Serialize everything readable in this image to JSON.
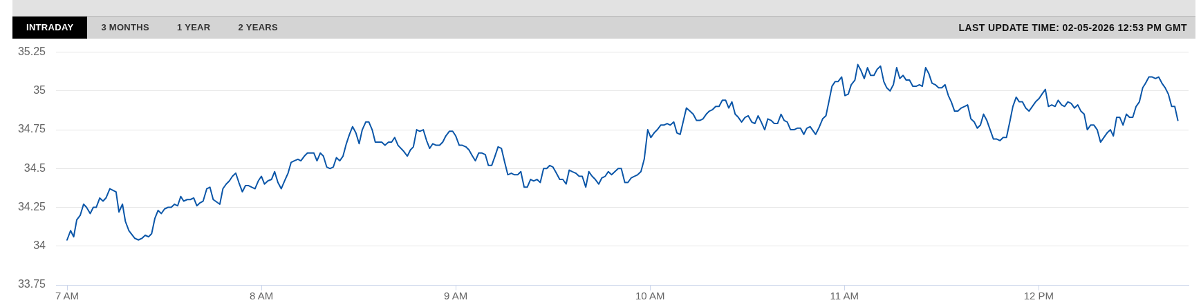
{
  "chart_data": {
    "type": "line",
    "subtitle": "LAST UPDATE TIME: 02-05-2026 12:53 PM GMT",
    "annotations": [
      "INTRADAY",
      "3 MONTHS",
      "1 YEAR",
      "2 YEARS"
    ],
    "x": [
      7.0,
      7.018,
      7.034,
      7.05,
      7.068,
      7.085,
      7.1,
      7.119,
      7.135,
      7.15,
      7.168,
      7.185,
      7.2,
      7.22,
      7.252,
      7.267,
      7.285,
      7.3,
      7.318,
      7.349,
      7.367,
      7.385,
      7.402,
      7.419,
      7.435,
      7.452,
      7.468,
      7.485,
      7.502,
      7.52,
      7.536,
      7.553,
      7.569,
      7.585,
      7.6,
      7.618,
      7.634,
      7.652,
      7.668,
      7.685,
      7.7,
      7.719,
      7.735,
      7.752,
      7.786,
      7.802,
      7.819,
      7.835,
      7.851,
      7.868,
      7.884,
      7.902,
      7.918,
      7.934,
      7.967,
      7.984,
      8.0,
      8.016,
      8.033,
      8.052,
      8.068,
      8.085,
      8.102,
      8.119,
      8.137,
      8.153,
      8.169,
      8.188,
      8.203,
      8.221,
      8.237,
      8.253,
      8.27,
      8.286,
      8.303,
      8.319,
      8.336,
      8.353,
      8.37,
      8.386,
      8.403,
      8.42,
      8.437,
      8.453,
      8.469,
      8.486,
      8.503,
      8.519,
      8.537,
      8.553,
      8.57,
      8.586,
      8.603,
      8.619,
      8.636,
      8.654,
      8.67,
      8.686,
      8.703,
      8.733,
      8.751,
      8.767,
      8.782,
      8.799,
      8.815,
      8.833,
      8.85,
      8.866,
      8.882,
      8.899,
      8.917,
      8.933,
      8.949,
      8.967,
      8.984,
      9.0,
      9.018,
      9.034,
      9.052,
      9.068,
      9.086,
      9.101,
      9.118,
      9.135,
      9.152,
      9.168,
      9.185,
      9.202,
      9.218,
      9.235,
      9.252,
      9.268,
      9.286,
      9.302,
      9.319,
      9.335,
      9.352,
      9.368,
      9.385,
      9.401,
      9.418,
      9.435,
      9.452,
      9.468,
      9.484,
      9.5,
      9.518,
      9.535,
      9.551,
      9.568,
      9.584,
      9.6,
      9.618,
      9.635,
      9.651,
      9.669,
      9.685,
      9.702,
      9.718,
      9.736,
      9.752,
      9.769,
      9.785,
      9.802,
      9.819,
      9.836,
      9.852,
      9.87,
      9.886,
      9.903,
      9.919,
      9.936,
      9.953,
      9.97,
      9.988,
      10.004,
      10.021,
      10.037,
      10.055,
      10.071,
      10.088,
      10.104,
      10.122,
      10.138,
      10.155,
      10.187,
      10.205,
      10.222,
      10.239,
      10.256,
      10.272,
      10.289,
      10.305,
      10.322,
      10.338,
      10.355,
      10.372,
      10.389,
      10.405,
      10.421,
      10.438,
      10.454,
      10.471,
      10.489,
      10.505,
      10.523,
      10.539,
      10.556,
      10.572,
      10.59,
      10.606,
      10.623,
      10.639,
      10.656,
      10.674,
      10.69,
      10.706,
      10.723,
      10.741,
      10.757,
      10.774,
      10.791,
      10.807,
      10.824,
      10.852,
      10.868,
      10.888,
      10.905,
      10.92,
      10.936,
      10.952,
      10.967,
      10.986,
      11.003,
      11.02,
      11.035,
      11.054,
      11.069,
      11.086,
      11.102,
      11.119,
      11.135,
      11.152,
      11.169,
      11.186,
      11.203,
      11.218,
      11.235,
      11.252,
      11.269,
      11.285,
      11.302,
      11.318,
      11.335,
      11.352,
      11.369,
      11.386,
      11.401,
      11.418,
      11.435,
      11.451,
      11.468,
      11.485,
      11.501,
      11.518,
      11.535,
      11.55,
      11.567,
      11.584,
      11.601,
      11.618,
      11.634,
      11.651,
      11.668,
      11.684,
      11.7,
      11.716,
      11.733,
      11.75,
      11.767,
      11.784,
      11.801,
      11.817,
      11.834,
      11.851,
      11.867,
      11.884,
      11.9,
      11.916,
      11.933,
      11.95,
      11.967,
      11.984,
      12.001,
      12.017,
      12.034,
      12.05,
      12.067,
      12.084,
      12.1,
      12.118,
      12.133,
      12.15,
      12.167,
      12.184,
      12.201,
      12.217,
      12.234,
      12.25,
      12.267,
      12.284,
      12.301,
      12.318,
      12.335,
      12.352,
      12.369,
      12.384,
      12.401,
      12.417,
      12.434,
      12.451,
      12.467,
      12.484,
      12.501,
      12.518,
      12.535,
      12.55,
      12.567,
      12.584,
      12.601,
      12.617,
      12.634,
      12.651,
      12.667,
      12.684,
      12.7,
      12.716
    ],
    "values": [
      34.04,
      34.1,
      34.06,
      34.17,
      34.2,
      34.27,
      34.25,
      34.21,
      34.25,
      34.25,
      34.31,
      34.29,
      34.31,
      34.37,
      34.35,
      34.22,
      34.27,
      34.16,
      34.1,
      34.05,
      34.04,
      34.05,
      34.07,
      34.06,
      34.08,
      34.18,
      34.23,
      34.21,
      34.24,
      34.25,
      34.25,
      34.27,
      34.26,
      34.32,
      34.29,
      34.3,
      34.3,
      34.31,
      34.26,
      34.28,
      34.29,
      34.37,
      34.38,
      34.3,
      34.27,
      34.37,
      34.4,
      34.42,
      34.45,
      34.47,
      34.41,
      34.35,
      34.39,
      34.39,
      34.37,
      34.42,
      34.45,
      34.4,
      34.42,
      34.43,
      34.48,
      34.41,
      34.37,
      34.42,
      34.47,
      34.54,
      34.55,
      34.56,
      34.55,
      34.58,
      34.6,
      34.6,
      34.6,
      34.55,
      34.6,
      34.58,
      34.51,
      34.5,
      34.51,
      34.57,
      34.55,
      34.58,
      34.66,
      34.72,
      34.77,
      34.73,
      34.66,
      34.75,
      34.8,
      34.8,
      34.75,
      34.67,
      34.67,
      34.67,
      34.65,
      34.67,
      34.67,
      34.7,
      34.65,
      34.61,
      34.58,
      34.62,
      34.64,
      34.75,
      34.74,
      34.75,
      34.68,
      34.63,
      34.66,
      34.65,
      34.65,
      34.67,
      34.71,
      34.74,
      34.74,
      34.71,
      34.65,
      34.65,
      34.64,
      34.62,
      34.58,
      34.55,
      34.6,
      34.6,
      34.59,
      34.52,
      34.52,
      34.58,
      34.64,
      34.63,
      34.54,
      34.46,
      34.47,
      34.46,
      34.46,
      34.48,
      34.38,
      34.38,
      34.43,
      34.42,
      34.43,
      34.41,
      34.5,
      34.5,
      34.52,
      34.51,
      34.47,
      34.43,
      34.43,
      34.4,
      34.49,
      34.48,
      34.47,
      34.45,
      34.45,
      34.38,
      34.48,
      34.45,
      34.43,
      34.4,
      34.44,
      34.45,
      34.48,
      34.46,
      34.48,
      34.5,
      34.5,
      34.41,
      34.41,
      34.44,
      34.45,
      34.46,
      34.48,
      34.56,
      34.75,
      34.7,
      34.73,
      34.75,
      34.78,
      34.78,
      34.79,
      34.78,
      34.8,
      34.73,
      34.72,
      34.89,
      34.87,
      34.85,
      34.81,
      34.81,
      34.82,
      34.85,
      34.87,
      34.88,
      34.9,
      34.9,
      34.94,
      34.94,
      34.89,
      34.93,
      34.85,
      34.83,
      34.8,
      34.83,
      34.84,
      34.8,
      34.79,
      34.84,
      34.8,
      34.75,
      34.82,
      34.81,
      34.79,
      34.79,
      34.85,
      34.81,
      34.8,
      34.75,
      34.75,
      34.76,
      34.76,
      34.72,
      34.76,
      34.77,
      34.72,
      34.76,
      34.82,
      34.84,
      34.93,
      35.03,
      35.06,
      35.06,
      35.09,
      34.97,
      34.98,
      35.04,
      35.07,
      35.17,
      35.13,
      35.08,
      35.15,
      35.1,
      35.1,
      35.14,
      35.16,
      35.06,
      35.02,
      35.0,
      35.04,
      35.15,
      35.08,
      35.1,
      35.07,
      35.07,
      35.03,
      35.03,
      35.04,
      35.03,
      35.15,
      35.11,
      35.05,
      35.04,
      35.02,
      35.02,
      35.04,
      34.97,
      34.93,
      34.87,
      34.87,
      34.89,
      34.9,
      34.91,
      34.82,
      34.8,
      34.76,
      34.78,
      34.85,
      34.81,
      34.75,
      34.69,
      34.69,
      34.68,
      34.7,
      34.7,
      34.8,
      34.9,
      34.96,
      34.93,
      34.93,
      34.89,
      34.87,
      34.9,
      34.93,
      34.95,
      34.98,
      35.01,
      34.9,
      34.91,
      34.9,
      34.94,
      34.91,
      34.9,
      34.93,
      34.92,
      34.89,
      34.91,
      34.87,
      34.85,
      34.75,
      34.78,
      34.78,
      34.75,
      34.67,
      34.7,
      34.73,
      34.75,
      34.71,
      34.83,
      34.83,
      34.78,
      34.85,
      34.83,
      34.83,
      34.9,
      34.93,
      35.02,
      35.05,
      35.09,
      35.09,
      35.08,
      35.09,
      35.05,
      35.02,
      34.98,
      34.9,
      34.9,
      34.81
    ],
    "color": "#0b56a8",
    "xlim": [
      6.943,
      12.771
    ],
    "xticks": [
      {
        "value": 7,
        "label": "7 AM"
      },
      {
        "value": 8,
        "label": "8 AM"
      },
      {
        "value": 9,
        "label": "9 AM"
      },
      {
        "value": 10,
        "label": "10 AM"
      },
      {
        "value": 11,
        "label": "11 AM"
      },
      {
        "value": 12,
        "label": "12 PM"
      }
    ],
    "ylim": [
      33.75,
      35.25
    ],
    "yticks": [
      33.75,
      34,
      34.25,
      34.5,
      34.75,
      35,
      35.25
    ],
    "grid": "y",
    "marker": "none",
    "line_style": "solid"
  }
}
